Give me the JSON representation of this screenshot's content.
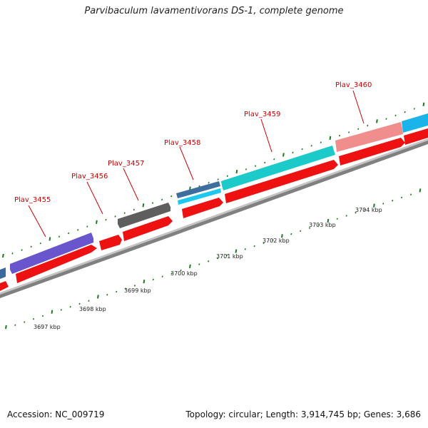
{
  "title": "Parvibaculum lavamentivorans DS-1, complete genome",
  "accession": "Accession: NC_009719",
  "summary": "Topology: circular; Length: 3,914,745 bp; Genes: 3,686",
  "colors": {
    "backbone": "#8a8a8a",
    "cds": "#ee1111",
    "tick": "#1f7a1f",
    "label": "#cc0000"
  },
  "gene_labels": [
    "Plav_3455",
    "Plav_3456",
    "Plav_3457",
    "Plav_3458",
    "Plav_3459",
    "Plav_3460"
  ],
  "kbp_labels": [
    "3697 kbp",
    "3698 kbp",
    "3699 kbp",
    "3700 kbp",
    "3701 kbp",
    "3702 kbp",
    "3703 kbp",
    "3704 kbp"
  ]
}
